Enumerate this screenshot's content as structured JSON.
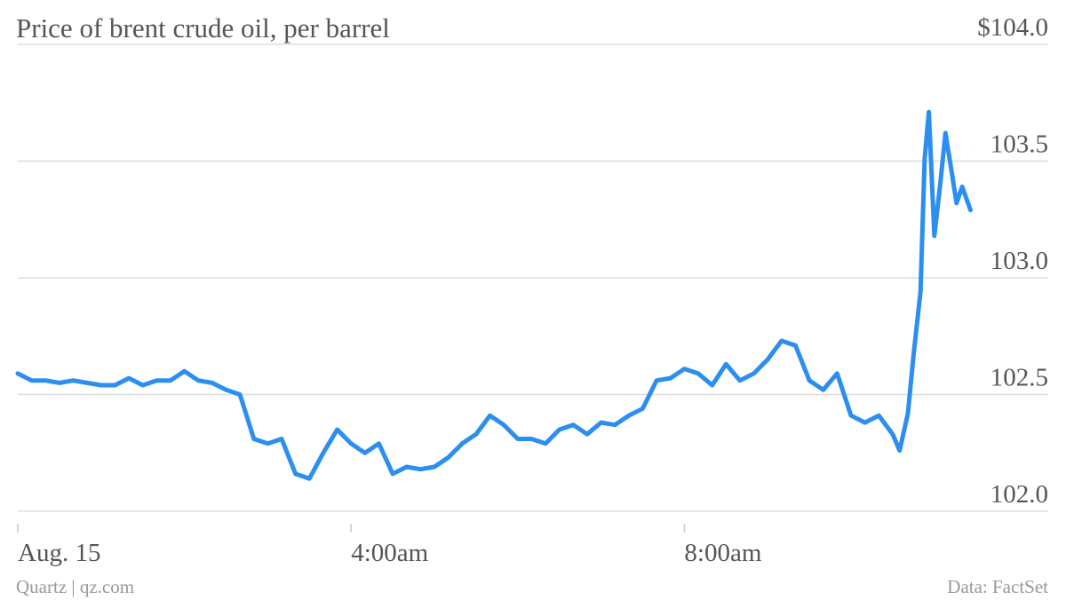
{
  "chart_data": {
    "type": "line",
    "title": "Price of brent crude oil, per barrel",
    "credit": "Quartz | qz.com",
    "source": "Data: FactSet",
    "x": [
      0,
      10,
      20,
      30,
      40,
      50,
      60,
      70,
      80,
      90,
      100,
      110,
      120,
      130,
      140,
      150,
      160,
      170,
      180,
      190,
      200,
      210,
      220,
      230,
      240,
      250,
      260,
      270,
      280,
      290,
      300,
      310,
      320,
      330,
      340,
      350,
      360,
      370,
      380,
      390,
      400,
      410,
      420,
      430,
      440,
      450,
      460,
      470,
      480,
      490,
      500,
      510,
      520,
      530,
      540,
      550,
      560,
      570,
      580,
      590,
      600,
      610,
      620,
      630,
      635,
      641,
      645,
      650,
      653,
      656,
      660,
      664,
      668,
      672,
      676,
      680,
      686
    ],
    "values": [
      102.59,
      102.56,
      102.56,
      102.55,
      102.56,
      102.55,
      102.54,
      102.54,
      102.57,
      102.54,
      102.56,
      102.56,
      102.6,
      102.56,
      102.55,
      102.52,
      102.5,
      102.31,
      102.29,
      102.31,
      102.16,
      102.14,
      102.25,
      102.35,
      102.29,
      102.25,
      102.29,
      102.16,
      102.19,
      102.18,
      102.19,
      102.23,
      102.29,
      102.33,
      102.41,
      102.37,
      102.31,
      102.31,
      102.29,
      102.35,
      102.37,
      102.33,
      102.38,
      102.37,
      102.41,
      102.44,
      102.56,
      102.57,
      102.61,
      102.59,
      102.54,
      102.63,
      102.56,
      102.59,
      102.65,
      102.73,
      102.71,
      102.56,
      102.52,
      102.59,
      102.41,
      102.38,
      102.41,
      102.33,
      102.26,
      102.42,
      102.67,
      102.94,
      103.51,
      103.71,
      103.18,
      103.39,
      103.62,
      103.47,
      103.32,
      103.39,
      103.29
    ],
    "color": "#2b8ef0",
    "xlim": [
      0,
      742
    ],
    "xticks": [
      {
        "value": 0,
        "label": "Aug. 15"
      },
      {
        "value": 240,
        "label": "4:00am"
      },
      {
        "value": 480,
        "label": "8:00am"
      }
    ],
    "ylim": [
      102.0,
      104.0
    ],
    "yticks": [
      {
        "value": 102.0,
        "label": "102.0"
      },
      {
        "value": 102.5,
        "label": "102.5"
      },
      {
        "value": 103.0,
        "label": "103.0"
      },
      {
        "value": 103.5,
        "label": "103.5"
      },
      {
        "value": 104.0,
        "label": "$104.0"
      }
    ],
    "grid": true
  }
}
